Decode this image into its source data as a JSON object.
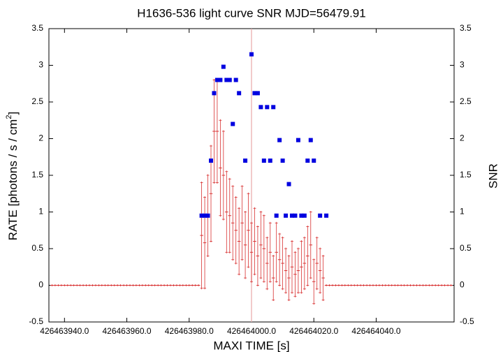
{
  "chart_data": {
    "type": "errorbar",
    "title": "H1636-536 light curve  SNR MJD=56479.91",
    "xlabel": "MAXI TIME [s]",
    "ylabel": "RATE [photons / s / cm",
    "ylabel_superscript": "2",
    "ylabel_end": "]",
    "y2label": "SNR",
    "xlim": [
      426463935,
      426464065
    ],
    "ylim": [
      -0.5,
      3.5
    ],
    "y2lim": [
      -0.5,
      3.5
    ],
    "xticks": [
      {
        "value": 426463940,
        "label": "426463940.0"
      },
      {
        "value": 426463960,
        "label": "426463960.0"
      },
      {
        "value": 426463980,
        "label": "426463980.0"
      },
      {
        "value": 426464000,
        "label": "426464000.0"
      },
      {
        "value": 426464020,
        "label": "426464020.0"
      },
      {
        "value": 426464040,
        "label": "426464040.0"
      }
    ],
    "yticks": [
      -0.5,
      0,
      0.5,
      1,
      1.5,
      2,
      2.5,
      3,
      3.5
    ],
    "y2ticks": [
      -0.5,
      0,
      0.5,
      1,
      1.5,
      2,
      2.5,
      3,
      3.5
    ],
    "marker_line_x": 426464000,
    "marker_line_color": "#e8a8a8",
    "x": [
      426463936,
      426463937,
      426463938,
      426463939,
      426463940,
      426463941,
      426463942,
      426463943,
      426463944,
      426463945,
      426463946,
      426463947,
      426463948,
      426463949,
      426463950,
      426463951,
      426463952,
      426463953,
      426463954,
      426463955,
      426463956,
      426463957,
      426463958,
      426463959,
      426463960,
      426463961,
      426463962,
      426463963,
      426463964,
      426463965,
      426463966,
      426463967,
      426463968,
      426463969,
      426463970,
      426463971,
      426463972,
      426463973,
      426463974,
      426463975,
      426463976,
      426463977,
      426463978,
      426463979,
      426463980,
      426463981,
      426463982,
      426463983,
      426463984,
      426463985,
      426463986,
      426463987,
      426463988,
      426463989,
      426463990,
      426463991,
      426463992,
      426463993,
      426463994,
      426463995,
      426463996,
      426463997,
      426463998,
      426463999,
      426464000,
      426464001,
      426464002,
      426464003,
      426464004,
      426464005,
      426464006,
      426464007,
      426464008,
      426464009,
      426464010,
      426464011,
      426464012,
      426464013,
      426464014,
      426464015,
      426464016,
      426464017,
      426464018,
      426464019,
      426464020,
      426464021,
      426464022,
      426464023,
      426464024,
      426464025,
      426464026,
      426464027,
      426464028,
      426464029,
      426464030,
      426464031,
      426464032,
      426464033,
      426464034,
      426464035,
      426464036,
      426464037,
      426464038,
      426464039,
      426464040,
      426464041,
      426464042,
      426464043,
      426464044,
      426464045,
      426464046,
      426464047,
      426464048,
      426464049,
      426464050,
      426464051,
      426464052,
      426464053,
      426464054,
      426464055,
      426464056,
      426464057,
      426464058,
      426464059,
      426464060,
      426464061,
      426464062,
      426464063,
      426464064
    ],
    "series": [
      {
        "name": "RATE",
        "color": "#d83030",
        "axis": "y",
        "values": [
          0,
          0,
          0,
          0,
          0,
          0,
          0,
          0,
          0,
          0,
          0,
          0,
          0,
          0,
          0,
          0,
          0,
          0,
          0,
          0,
          0,
          0,
          0,
          0,
          0,
          0,
          0,
          0,
          0,
          0,
          0,
          0,
          0,
          0,
          0,
          0,
          0,
          0,
          0,
          0,
          0,
          0,
          0,
          0,
          0,
          0,
          0,
          0,
          0.68,
          0.58,
          0.95,
          1.25,
          2.1,
          2.1,
          1.6,
          1.5,
          1.0,
          0.95,
          0.85,
          0.75,
          0.6,
          0.85,
          0.55,
          0.75,
          0.45,
          0.6,
          0.4,
          0.55,
          0.5,
          0.3,
          0.45,
          0.1,
          0.45,
          0.35,
          0.3,
          0.2,
          0.1,
          0.25,
          0.15,
          0.2,
          0.25,
          0.3,
          0.4,
          0.55,
          0.05,
          0.3,
          0.2,
          0.1,
          0,
          0,
          0,
          0,
          0,
          0,
          0,
          0,
          0,
          0,
          0,
          0,
          0,
          0,
          0,
          0,
          0,
          0,
          0,
          0,
          0,
          0,
          0,
          0,
          0,
          0,
          0,
          0,
          0,
          0,
          0,
          0,
          0,
          0,
          0,
          0,
          0,
          0,
          0,
          0,
          0
        ],
        "errors": [
          0,
          0,
          0,
          0,
          0,
          0,
          0,
          0,
          0,
          0,
          0,
          0,
          0,
          0,
          0,
          0,
          0,
          0,
          0,
          0,
          0,
          0,
          0,
          0,
          0,
          0,
          0,
          0,
          0,
          0,
          0,
          0,
          0,
          0,
          0,
          0,
          0,
          0,
          0,
          0,
          0,
          0,
          0,
          0,
          0,
          0,
          0,
          0,
          0.72,
          0.62,
          0.55,
          0.65,
          0.7,
          0.7,
          0.65,
          0.6,
          0.55,
          0.5,
          0.5,
          0.45,
          0.45,
          0.5,
          0.45,
          0.5,
          0.4,
          0.45,
          0.4,
          0.45,
          0.45,
          0.35,
          0.4,
          0.3,
          0.4,
          0.35,
          0.35,
          0.3,
          0.3,
          0.35,
          0.3,
          0.3,
          0.35,
          0.35,
          0.4,
          0.45,
          0.3,
          0.35,
          0.3,
          0.3,
          0,
          0,
          0,
          0,
          0,
          0,
          0,
          0,
          0,
          0,
          0,
          0,
          0,
          0,
          0,
          0,
          0,
          0,
          0,
          0,
          0,
          0,
          0,
          0,
          0,
          0,
          0,
          0,
          0,
          0,
          0,
          0,
          0,
          0,
          0,
          0,
          0,
          0,
          0,
          0,
          0
        ]
      },
      {
        "name": "SNR",
        "color": "#0000e0",
        "axis": "y2",
        "values": [
          null,
          null,
          null,
          null,
          null,
          null,
          null,
          null,
          null,
          null,
          null,
          null,
          null,
          null,
          null,
          null,
          null,
          null,
          null,
          null,
          null,
          null,
          null,
          null,
          null,
          null,
          null,
          null,
          null,
          null,
          null,
          null,
          null,
          null,
          null,
          null,
          null,
          null,
          null,
          null,
          null,
          null,
          null,
          null,
          null,
          null,
          null,
          null,
          0.95,
          0.95,
          0.95,
          1.7,
          2.62,
          2.8,
          2.8,
          2.98,
          2.8,
          2.8,
          2.2,
          2.8,
          2.62,
          null,
          1.7,
          null,
          3.15,
          2.62,
          2.62,
          2.43,
          1.7,
          2.43,
          1.7,
          2.43,
          0.95,
          1.98,
          1.7,
          0.95,
          1.38,
          0.95,
          0.95,
          1.98,
          0.95,
          0.95,
          1.7,
          1.98,
          1.7,
          null,
          0.95,
          null,
          0.95,
          null,
          null,
          null,
          null,
          null,
          null,
          null,
          null,
          null,
          null,
          null,
          null,
          null,
          null,
          null,
          null,
          null,
          null,
          null,
          null,
          null,
          null,
          null,
          null,
          null,
          null,
          null,
          null,
          null,
          null,
          null,
          null,
          null,
          null,
          null,
          null,
          null,
          null,
          null,
          null
        ]
      }
    ]
  }
}
